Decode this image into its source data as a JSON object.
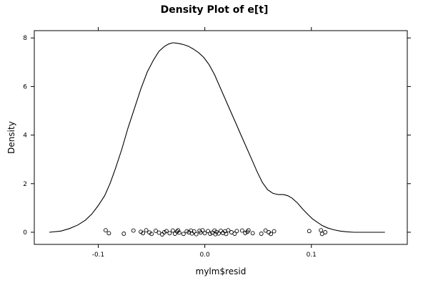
{
  "chart_data": {
    "type": "line",
    "title": "Density Plot of e[t]",
    "xlabel": "mylm$resid",
    "ylabel": "Density",
    "xlim": [
      -0.16,
      0.19
    ],
    "ylim": [
      -0.5,
      8.3
    ],
    "x_ticks": [
      -0.1,
      0.0,
      0.1
    ],
    "x_tick_labels": [
      "-0.1",
      "0.0",
      "0.1"
    ],
    "y_ticks": [
      0,
      2,
      4,
      6,
      8
    ],
    "y_tick_labels": [
      "0",
      "2",
      "4",
      "6",
      "8"
    ],
    "grid": false,
    "series": [
      {
        "x": [
          -0.146,
          -0.135,
          -0.127,
          -0.119,
          -0.112,
          -0.106,
          -0.1,
          -0.094,
          -0.089,
          -0.084,
          -0.078,
          -0.072,
          -0.066,
          -0.06,
          -0.054,
          -0.048,
          -0.043,
          -0.038,
          -0.034,
          -0.03,
          -0.026,
          -0.022,
          -0.018,
          -0.015,
          -0.011,
          -0.006,
          -0.001,
          0.004,
          0.009,
          0.014,
          0.019,
          0.024,
          0.029,
          0.034,
          0.039,
          0.044,
          0.049,
          0.054,
          0.059,
          0.064,
          0.069,
          0.074,
          0.078,
          0.082,
          0.087,
          0.092,
          0.097,
          0.101,
          0.106,
          0.11,
          0.115,
          0.121,
          0.127,
          0.133,
          0.14,
          0.148,
          0.156,
          0.164,
          0.169
        ],
        "y": [
          0.0,
          0.05,
          0.15,
          0.3,
          0.5,
          0.75,
          1.1,
          1.5,
          2.0,
          2.6,
          3.4,
          4.3,
          5.1,
          5.9,
          6.6,
          7.1,
          7.45,
          7.65,
          7.75,
          7.8,
          7.78,
          7.75,
          7.7,
          7.65,
          7.55,
          7.4,
          7.2,
          6.9,
          6.5,
          6.0,
          5.5,
          5.0,
          4.5,
          4.0,
          3.5,
          3.0,
          2.5,
          2.05,
          1.75,
          1.6,
          1.55,
          1.55,
          1.5,
          1.4,
          1.2,
          0.95,
          0.72,
          0.55,
          0.4,
          0.28,
          0.18,
          0.1,
          0.05,
          0.02,
          0.0,
          0.0,
          0.0,
          0.0,
          0.0
        ]
      }
    ],
    "rug": {
      "x": [
        -0.093,
        -0.09,
        -0.076,
        -0.067,
        -0.06,
        -0.058,
        -0.055,
        -0.052,
        -0.05,
        -0.046,
        -0.043,
        -0.04,
        -0.038,
        -0.036,
        -0.033,
        -0.03,
        -0.028,
        -0.026,
        -0.025,
        -0.024,
        -0.02,
        -0.017,
        -0.015,
        -0.013,
        -0.012,
        -0.01,
        -0.008,
        -0.005,
        -0.004,
        -0.002,
        0.0,
        0.003,
        0.005,
        0.007,
        0.009,
        0.01,
        0.011,
        0.013,
        0.015,
        0.017,
        0.019,
        0.02,
        0.022,
        0.025,
        0.028,
        0.03,
        0.035,
        0.038,
        0.04,
        0.041,
        0.045,
        0.053,
        0.057,
        0.06,
        0.062,
        0.065,
        0.098,
        0.109,
        0.11,
        0.113
      ],
      "y": [
        0.08,
        -0.04,
        -0.06,
        0.07,
        0.02,
        -0.04,
        0.08,
        -0.01,
        -0.07,
        0.06,
        -0.02,
        -0.09,
        0.0,
        0.05,
        -0.04,
        0.07,
        -0.06,
        0.03,
        0.08,
        -0.02,
        -0.07,
        0.04,
        0.0,
        0.07,
        -0.05,
        0.03,
        -0.08,
        0.06,
        -0.01,
        0.08,
        -0.04,
        0.05,
        -0.06,
        -0.02,
        0.07,
        -0.08,
        0.01,
        -0.05,
        0.06,
        -0.03,
        0.04,
        -0.07,
        0.08,
        0.0,
        -0.06,
        0.05,
        0.07,
        -0.03,
        0.02,
        0.08,
        -0.04,
        -0.06,
        0.07,
        0.0,
        -0.07,
        0.04,
        0.05,
        0.08,
        -0.07,
        0.0
      ]
    }
  }
}
